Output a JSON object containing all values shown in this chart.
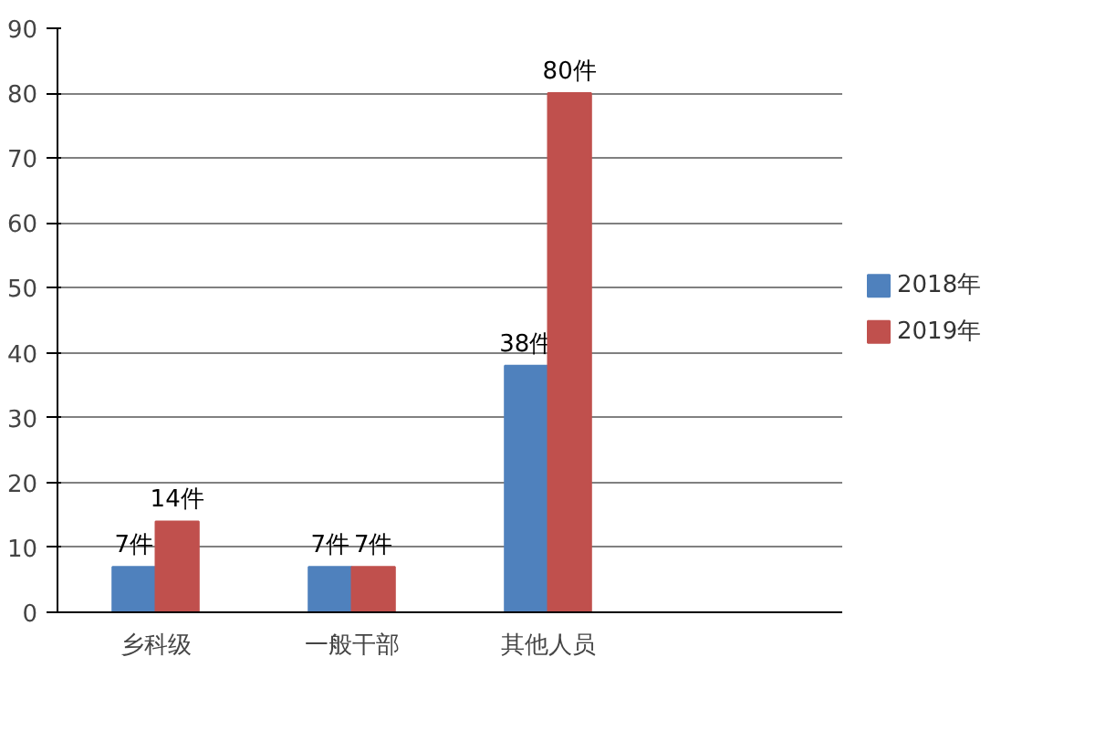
{
  "chart_data": {
    "type": "bar",
    "categories": [
      "乡科级",
      "一般干部",
      "其他人员",
      null
    ],
    "series": [
      {
        "name": "2018年",
        "color": "#4f81bd",
        "values": [
          7,
          7,
          38,
          null
        ],
        "value_labels": [
          "7件",
          "7件",
          "38件",
          null
        ]
      },
      {
        "name": "2019年",
        "color": "#c0504d",
        "values": [
          14,
          7,
          80,
          null
        ],
        "value_labels": [
          "14件",
          "7件",
          "80件",
          null
        ]
      }
    ],
    "ylim": [
      0,
      90
    ],
    "yticks": [
      0,
      10,
      20,
      30,
      40,
      50,
      60,
      70,
      80,
      90
    ],
    "grid": "y",
    "legend": "right"
  }
}
